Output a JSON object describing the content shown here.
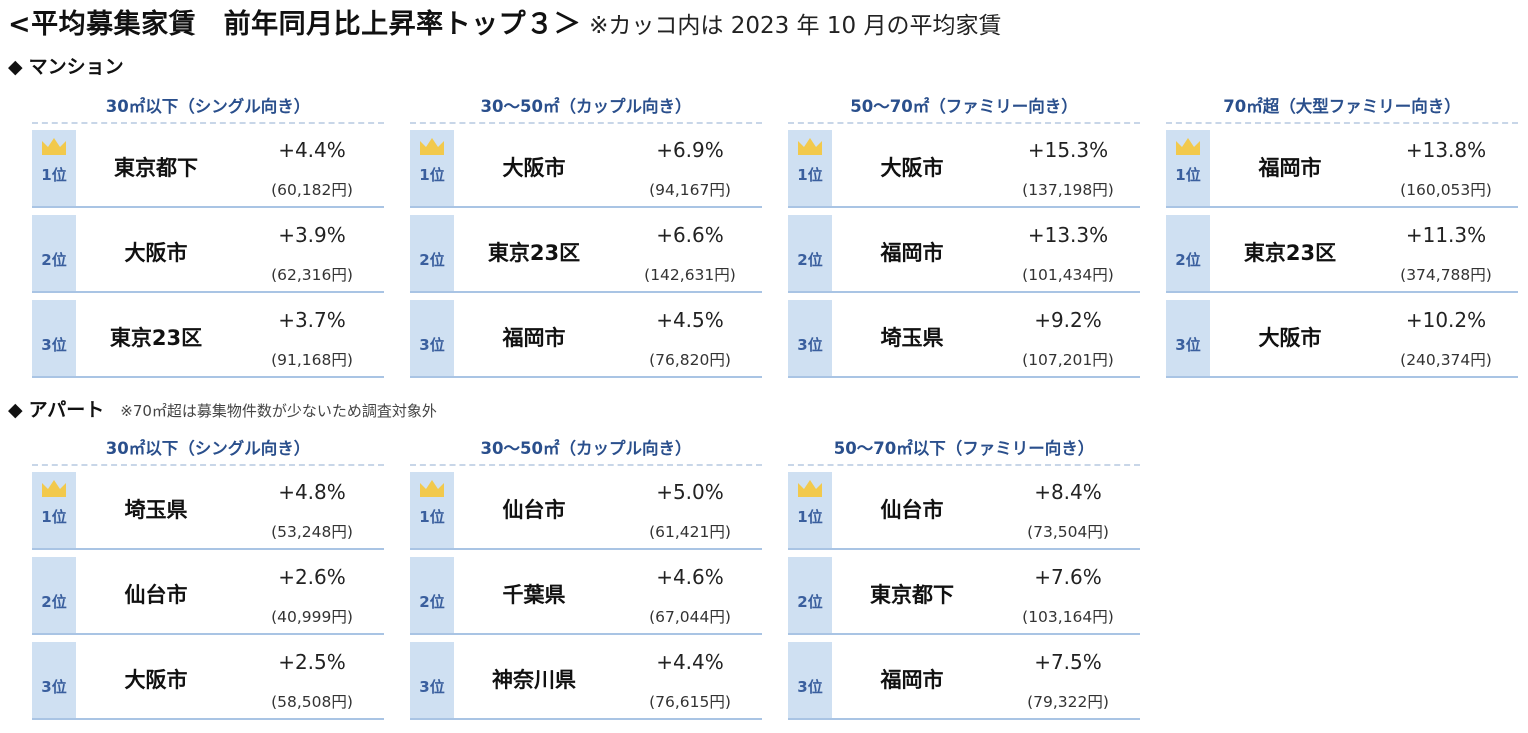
{
  "title": {
    "main": "<平均募集家賃　前年同月比上昇率トップ３＞",
    "note": "※カッコ内は 2023 年 10 月の平均家賃"
  },
  "sections": [
    {
      "name": "マンション",
      "note": "",
      "columns": [
        {
          "header": "30㎡以下（シングル向き）",
          "rows": [
            {
              "rank": "1位",
              "city": "東京都下",
              "change": "+4.4%",
              "rent": "(60,182円)"
            },
            {
              "rank": "2位",
              "city": "大阪市",
              "change": "+3.9%",
              "rent": "(62,316円)"
            },
            {
              "rank": "3位",
              "city": "東京23区",
              "change": "+3.7%",
              "rent": "(91,168円)"
            }
          ]
        },
        {
          "header": "30～50㎡（カップル向き）",
          "rows": [
            {
              "rank": "1位",
              "city": "大阪市",
              "change": "+6.9%",
              "rent": "(94,167円)"
            },
            {
              "rank": "2位",
              "city": "東京23区",
              "change": "+6.6%",
              "rent": "(142,631円)"
            },
            {
              "rank": "3位",
              "city": "福岡市",
              "change": "+4.5%",
              "rent": "(76,820円)"
            }
          ]
        },
        {
          "header": "50～70㎡（ファミリー向き）",
          "rows": [
            {
              "rank": "1位",
              "city": "大阪市",
              "change": "+15.3%",
              "rent": "(137,198円)"
            },
            {
              "rank": "2位",
              "city": "福岡市",
              "change": "+13.3%",
              "rent": "(101,434円)"
            },
            {
              "rank": "3位",
              "city": "埼玉県",
              "change": "+9.2%",
              "rent": "(107,201円)"
            }
          ]
        },
        {
          "header": "70㎡超（大型ファミリー向き）",
          "rows": [
            {
              "rank": "1位",
              "city": "福岡市",
              "change": "+13.8%",
              "rent": "(160,053円)"
            },
            {
              "rank": "2位",
              "city": "東京23区",
              "change": "+11.3%",
              "rent": "(374,788円)"
            },
            {
              "rank": "3位",
              "city": "大阪市",
              "change": "+10.2%",
              "rent": "(240,374円)"
            }
          ]
        }
      ]
    },
    {
      "name": "アパート",
      "note": "※70㎡超は募集物件数が少ないため調査対象外",
      "columns": [
        {
          "header": "30㎡以下（シングル向き）",
          "rows": [
            {
              "rank": "1位",
              "city": "埼玉県",
              "change": "+4.8%",
              "rent": "(53,248円)"
            },
            {
              "rank": "2位",
              "city": "仙台市",
              "change": "+2.6%",
              "rent": "(40,999円)"
            },
            {
              "rank": "3位",
              "city": "大阪市",
              "change": "+2.5%",
              "rent": "(58,508円)"
            }
          ]
        },
        {
          "header": "30～50㎡（カップル向き）",
          "rows": [
            {
              "rank": "1位",
              "city": "仙台市",
              "change": "+5.0%",
              "rent": "(61,421円)"
            },
            {
              "rank": "2位",
              "city": "千葉県",
              "change": "+4.6%",
              "rent": "(67,044円)"
            },
            {
              "rank": "3位",
              "city": "神奈川県",
              "change": "+4.4%",
              "rent": "(76,615円)"
            }
          ]
        },
        {
          "header": "50～70㎡以下（ファミリー向き）",
          "rows": [
            {
              "rank": "1位",
              "city": "仙台市",
              "change": "+8.4%",
              "rent": "(73,504円)"
            },
            {
              "rank": "2位",
              "city": "東京都下",
              "change": "+7.6%",
              "rent": "(103,164円)"
            },
            {
              "rank": "3位",
              "city": "福岡市",
              "change": "+7.5%",
              "rent": "(79,322円)"
            }
          ]
        }
      ]
    }
  ],
  "style": {
    "header_color": "#2a4f8c",
    "rank_fill": "#cfe0f2",
    "crown_color": "#f2c94c",
    "crown_icon": "crown-icon"
  }
}
